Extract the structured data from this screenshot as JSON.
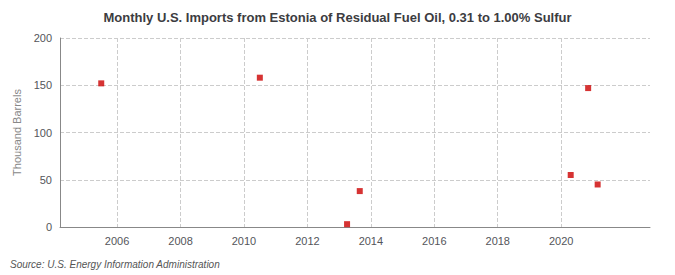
{
  "chart_data": {
    "type": "scatter",
    "title": "Monthly U.S. Imports from Estonia of Residual Fuel Oil, 0.31 to 1.00% Sulfur",
    "ylabel": "Thousand Barrels",
    "annotations": [
      "Source: U.S. Energy Information Administration"
    ],
    "x": [
      2005.5,
      2010.5,
      2013.25,
      2013.65,
      2020.3,
      2020.85,
      2021.15
    ],
    "values": [
      152,
      158,
      3,
      38,
      55,
      147,
      45
    ],
    "color": "#cc0000",
    "marker": "square",
    "xlim": [
      2004.2,
      2022.8
    ],
    "ylim": [
      0,
      200
    ],
    "xticks": [
      2006,
      2008,
      2010,
      2012,
      2014,
      2016,
      2018,
      2020
    ],
    "yticks": [
      0,
      50,
      100,
      150,
      200
    ],
    "grid": true
  }
}
